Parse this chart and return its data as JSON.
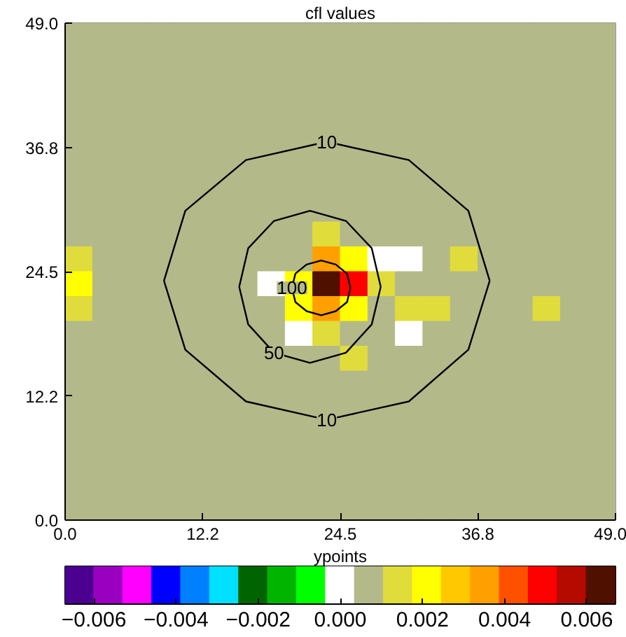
{
  "chart_data": {
    "type": "heatmap",
    "title": "cfl values",
    "clabel": "ypoints",
    "xlim": [
      0,
      49
    ],
    "ylim": [
      0,
      49
    ],
    "xticks": [
      {
        "value": 0,
        "label": "0.0"
      },
      {
        "value": 12.25,
        "label": "12.2"
      },
      {
        "value": 24.5,
        "label": "24.5"
      },
      {
        "value": 36.75,
        "label": "36.8"
      },
      {
        "value": 49,
        "label": "49.0"
      }
    ],
    "yticks": [
      {
        "value": 0,
        "label": "0.0"
      },
      {
        "value": 12.25,
        "label": "12.2"
      },
      {
        "value": 24.5,
        "label": "24.5"
      },
      {
        "value": 36.75,
        "label": "36.8"
      },
      {
        "value": 49,
        "label": "49.0"
      }
    ],
    "clim": [
      -0.0067,
      0.0067
    ],
    "cticks": [
      {
        "value": -0.006,
        "label": "−0.006"
      },
      {
        "value": -0.004,
        "label": "−0.004"
      },
      {
        "value": -0.002,
        "label": "−0.002"
      },
      {
        "value": 0,
        "label": "0.000"
      },
      {
        "value": 0.002,
        "label": "0.002"
      },
      {
        "value": 0.004,
        "label": "0.004"
      },
      {
        "value": 0.006,
        "label": "0.006"
      }
    ],
    "cells": [
      [
        0.0007,
        0.0007,
        0.0007,
        0.0007,
        0.0007,
        0.0007,
        0.0007,
        0.0007,
        0.0007,
        0.0007,
        0.0007,
        0.0007,
        0.0007,
        0.0007,
        0.0007,
        0.0007,
        0.0007,
        0.0007,
        0.0007,
        0.0007
      ],
      [
        0.0007,
        0.0007,
        0.0007,
        0.0007,
        0.0007,
        0.0007,
        0.0007,
        0.0007,
        0.0007,
        0.0007,
        0.0007,
        0.0007,
        0.0007,
        0.0007,
        0.0007,
        0.0007,
        0.0007,
        0.0007,
        0.0007,
        0.0007
      ],
      [
        0.0007,
        0.0007,
        0.0007,
        0.0007,
        0.0007,
        0.0007,
        0.0007,
        0.0007,
        0.0007,
        0.0007,
        0.0007,
        0.0007,
        0.0007,
        0.0007,
        0.0007,
        0.0007,
        0.0007,
        0.0007,
        0.0007,
        0.0007
      ],
      [
        0.0007,
        0.0007,
        0.0007,
        0.0007,
        0.0007,
        0.0007,
        0.0007,
        0.0007,
        0.0007,
        0.0007,
        0.0007,
        0.0007,
        0.0007,
        0.0007,
        0.0007,
        0.0007,
        0.0007,
        0.0007,
        0.0007,
        0.0007
      ],
      [
        0.0007,
        0.0007,
        0.0007,
        0.0007,
        0.0007,
        0.0007,
        0.0007,
        0.0007,
        0.0007,
        0.0007,
        0.0007,
        0.0007,
        0.0007,
        0.0007,
        0.0007,
        0.0007,
        0.0007,
        0.0007,
        0.0007,
        0.0007
      ],
      [
        0.0007,
        0.0007,
        0.0007,
        0.0007,
        0.0007,
        0.0007,
        0.0007,
        0.0007,
        0.0007,
        0.0007,
        0.0007,
        0.0007,
        0.0007,
        0.0007,
        0.0007,
        0.0007,
        0.0007,
        0.0007,
        0.0007,
        0.0007
      ],
      [
        0.0007,
        0.0007,
        0.0007,
        0.0007,
        0.0007,
        0.0007,
        0.0007,
        0.0007,
        0.0007,
        0.0007,
        0.0007,
        0.0007,
        0.0007,
        0.0007,
        0.0007,
        0.0007,
        0.0007,
        0.0007,
        0.0007,
        0.0007
      ],
      [
        0.0007,
        0.0007,
        0.0007,
        0.0007,
        0.0007,
        0.0007,
        0.0007,
        0.0007,
        0.0007,
        0.0007,
        0.0007,
        0.0007,
        0.0007,
        0.0007,
        0.0007,
        0.0007,
        0.0007,
        0.0007,
        0.0007,
        0.0007
      ],
      [
        0.0007,
        0.0007,
        0.0007,
        0.0007,
        0.0007,
        0.0007,
        0.0007,
        0.0007,
        0.0007,
        0.0014,
        0.0007,
        0.0007,
        0.0007,
        0.0007,
        0.0007,
        0.0007,
        0.0007,
        0.0007,
        0.0007,
        0.0007
      ],
      [
        0.0014,
        0.0007,
        0.0007,
        0.0007,
        0.0007,
        0.0007,
        0.0007,
        0.0007,
        0.0007,
        0.0035,
        0.0021,
        0,
        0,
        0.0007,
        0.0014,
        0.0007,
        0.0007,
        0.0007,
        0.0007,
        0.0007
      ],
      [
        0.0021,
        0.0007,
        0.0007,
        0.0007,
        0.0007,
        0.0007,
        0.0007,
        0,
        0.0021,
        0.0063,
        0.0049,
        0.0014,
        0.0007,
        0.0007,
        0.0007,
        0.0007,
        0.0007,
        0.0007,
        0.0007,
        0.0007
      ],
      [
        0.0014,
        0.0007,
        0.0007,
        0.0007,
        0.0007,
        0.0007,
        0.0007,
        0.0007,
        0.0021,
        0.0035,
        0.0021,
        0.0007,
        0.0014,
        0.0014,
        0.0007,
        0.0007,
        0.0007,
        0.0014,
        0.0007,
        0.0007
      ],
      [
        0.0007,
        0.0007,
        0.0007,
        0.0007,
        0.0007,
        0.0007,
        0.0007,
        0.0007,
        0,
        0.0014,
        0.0007,
        0.0007,
        0,
        0.0007,
        0.0007,
        0.0007,
        0.0007,
        0.0007,
        0.0007,
        0.0007
      ],
      [
        0.0007,
        0.0007,
        0.0007,
        0.0007,
        0.0007,
        0.0007,
        0.0007,
        0.0007,
        0.0007,
        0.0007,
        0.0014,
        0.0007,
        0.0007,
        0.0007,
        0.0007,
        0.0007,
        0.0007,
        0.0007,
        0.0007,
        0.0007
      ],
      [
        0.0007,
        0.0007,
        0.0007,
        0.0007,
        0.0007,
        0.0007,
        0.0007,
        0.0007,
        0.0007,
        0.0007,
        0.0007,
        0.0007,
        0.0007,
        0.0007,
        0.0007,
        0.0007,
        0.0007,
        0.0007,
        0.0007,
        0.0007
      ],
      [
        0.0007,
        0.0007,
        0.0007,
        0.0007,
        0.0007,
        0.0007,
        0.0007,
        0.0007,
        0.0007,
        0.0007,
        0.0007,
        0.0007,
        0.0007,
        0.0007,
        0.0007,
        0.0007,
        0.0007,
        0.0007,
        0.0007,
        0.0007
      ],
      [
        0.0007,
        0.0007,
        0.0007,
        0.0007,
        0.0007,
        0.0007,
        0.0007,
        0.0007,
        0.0007,
        0.0007,
        0.0007,
        0.0007,
        0.0007,
        0.0007,
        0.0007,
        0.0007,
        0.0007,
        0.0007,
        0.0007,
        0.0007
      ],
      [
        0.0007,
        0.0007,
        0.0007,
        0.0007,
        0.0007,
        0.0007,
        0.0007,
        0.0007,
        0.0007,
        0.0007,
        0.0007,
        0.0007,
        0.0007,
        0.0007,
        0.0007,
        0.0007,
        0.0007,
        0.0007,
        0.0007,
        0.0007
      ],
      [
        0.0007,
        0.0007,
        0.0007,
        0.0007,
        0.0007,
        0.0007,
        0.0007,
        0.0007,
        0.0007,
        0.0007,
        0.0007,
        0.0007,
        0.0007,
        0.0007,
        0.0007,
        0.0007,
        0.0007,
        0.0007,
        0.0007,
        0.0007
      ],
      [
        0.0007,
        0.0007,
        0.0007,
        0.0007,
        0.0007,
        0.0007,
        0.0007,
        0.0007,
        0.0007,
        0.0007,
        0.0007,
        0.0007,
        0.0007,
        0.0007,
        0.0007,
        0.0007,
        0.0007,
        0.0007,
        0.0007,
        0.0007
      ]
    ],
    "series": [
      {
        "type": "line",
        "color": "#000000",
        "x": [
          8.8,
          10.7,
          16.1,
          23.3,
          30.6,
          35.9,
          37.8
        ],
        "values": [
          23.6,
          30.5,
          35.5,
          37.3,
          35.5,
          30.5,
          23.6
        ]
      },
      {
        "type": "line",
        "color": "#000000",
        "x": [
          8.8,
          10.7,
          16.1,
          23.3,
          30.6,
          35.9,
          37.8
        ],
        "values": [
          23.6,
          16.8,
          11.7,
          9.9,
          11.7,
          16.8,
          23.6
        ]
      },
      {
        "type": "line",
        "color": "#000000",
        "x": [
          15.5,
          16.3,
          18.6,
          21.8,
          25.0,
          27.3,
          28.1
        ],
        "values": [
          23.0,
          26.8,
          29.5,
          30.5,
          29.5,
          26.8,
          23.0
        ]
      },
      {
        "type": "line",
        "color": "#000000",
        "x": [
          15.5,
          16.3,
          18.6,
          21.8,
          25.0,
          27.3,
          28.1
        ],
        "values": [
          23.0,
          19.3,
          16.5,
          15.5,
          16.5,
          19.3,
          23.0
        ]
      },
      {
        "type": "line",
        "color": "#000000",
        "x": [
          20.2,
          20.5,
          21.5,
          22.8,
          24.1,
          25.1,
          25.4
        ],
        "values": [
          22.9,
          24.3,
          25.2,
          25.6,
          25.2,
          24.3,
          22.9
        ]
      },
      {
        "type": "line",
        "color": "#000000",
        "x": [
          20.2,
          20.5,
          21.5,
          22.8,
          24.1,
          25.1,
          25.4
        ],
        "values": [
          22.9,
          21.5,
          20.6,
          20.2,
          20.6,
          21.5,
          22.9
        ]
      }
    ],
    "annotations": [
      {
        "text": "10",
        "x": 23.3,
        "y": 37.3
      },
      {
        "text": "10",
        "x": 23.3,
        "y": 9.9
      },
      {
        "text": "50",
        "x": 18.6,
        "y": 16.5
      },
      {
        "text": "100",
        "x": 20.2,
        "y": 22.9
      }
    ]
  }
}
